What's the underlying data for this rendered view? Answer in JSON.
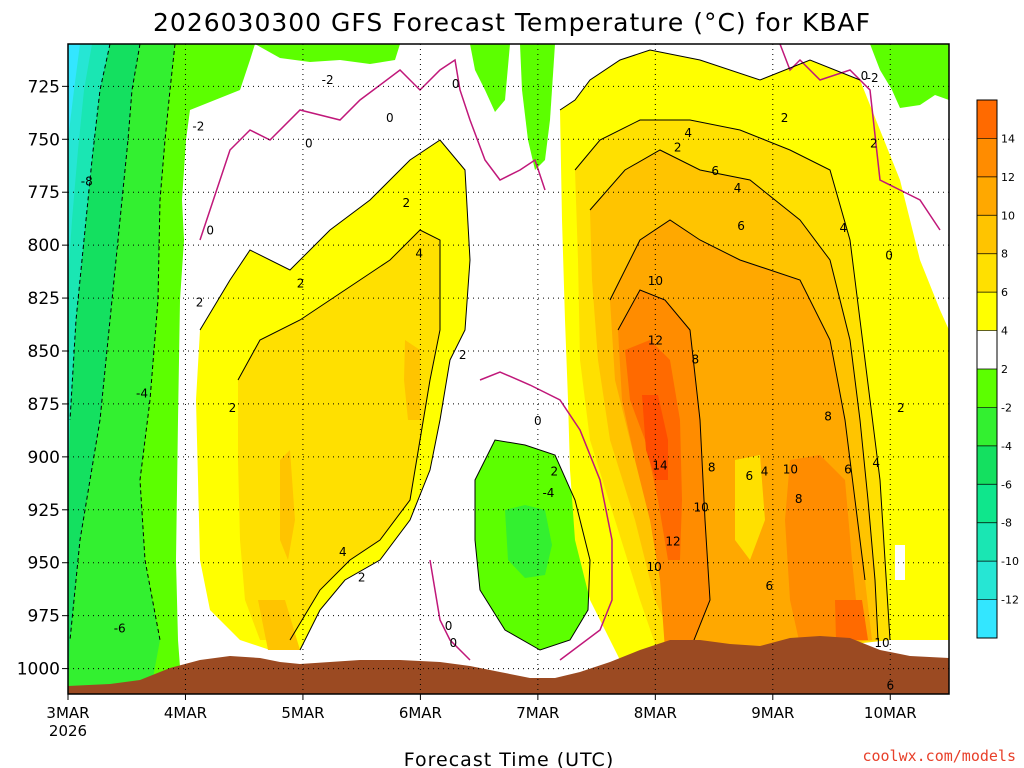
{
  "chart_data": {
    "type": "heatmap",
    "title": "2026030300  GFS Forecast Temperature (°C) for KBAF",
    "xlabel": "Forecast Time (UTC)",
    "ylabel": "",
    "x_ticks": [
      {
        "label": "3MAR",
        "sublabel": "2026",
        "day": 0
      },
      {
        "label": "4MAR",
        "day": 1
      },
      {
        "label": "5MAR",
        "day": 2
      },
      {
        "label": "6MAR",
        "day": 3
      },
      {
        "label": "7MAR",
        "day": 4
      },
      {
        "label": "8MAR",
        "day": 5
      },
      {
        "label": "9MAR",
        "day": 6
      },
      {
        "label": "10MAR",
        "day": 7
      }
    ],
    "xlim": [
      0,
      7.5
    ],
    "y_ticks": [
      725,
      750,
      775,
      800,
      825,
      850,
      875,
      900,
      925,
      950,
      975,
      1000
    ],
    "ylim": [
      1012,
      705
    ],
    "colorbar": {
      "levels": [
        -14,
        -12,
        -10,
        -8,
        -6,
        -4,
        -2,
        2,
        4,
        6,
        8,
        10,
        12,
        14,
        16
      ],
      "tick_labels": [
        "-12",
        "-10",
        "-8",
        "-6",
        "-4",
        "-2",
        "2",
        "4",
        "6",
        "8",
        "10",
        "12",
        "14"
      ],
      "colors": [
        "#33e6ff",
        "#26e6d4",
        "#1ae6b3",
        "#0fe68c",
        "#14e060",
        "#33f030",
        "#5cff00",
        "#ffffff",
        "#ffff00",
        "#ffe000",
        "#ffc400",
        "#ffa800",
        "#ff8c00",
        "#ff6a00",
        "#ff4e00"
      ]
    },
    "ground_color": "#9b4a22",
    "zero_contour_color": "#c0187a",
    "contour_labels": [
      {
        "text": "-2",
        "day": 2.21,
        "p": 722
      },
      {
        "text": "-2",
        "day": 1.11,
        "p": 744
      },
      {
        "text": "-2",
        "day": 6.85,
        "p": 721
      },
      {
        "text": "-8",
        "day": 0.16,
        "p": 770
      },
      {
        "text": "-4",
        "day": 0.63,
        "p": 870
      },
      {
        "text": "-6",
        "day": 0.44,
        "p": 981
      },
      {
        "text": "0",
        "day": 3.3,
        "p": 724
      },
      {
        "text": "0",
        "day": 2.74,
        "p": 740
      },
      {
        "text": "0",
        "day": 2.05,
        "p": 752
      },
      {
        "text": "0",
        "day": 1.21,
        "p": 793
      },
      {
        "text": "0",
        "day": 6.78,
        "p": 720
      },
      {
        "text": "0",
        "day": 6.99,
        "p": 805
      },
      {
        "text": "0",
        "day": 4.0,
        "p": 883
      },
      {
        "text": "0",
        "day": 3.24,
        "p": 980
      },
      {
        "text": "0",
        "day": 3.28,
        "p": 988
      },
      {
        "text": "2",
        "day": 5.19,
        "p": 754
      },
      {
        "text": "2",
        "day": 6.86,
        "p": 752
      },
      {
        "text": "2",
        "day": 6.1,
        "p": 740
      },
      {
        "text": "2",
        "day": 2.88,
        "p": 780
      },
      {
        "text": "2",
        "day": 1.98,
        "p": 818
      },
      {
        "text": "2",
        "day": 1.12,
        "p": 827
      },
      {
        "text": "2",
        "day": 1.4,
        "p": 877
      },
      {
        "text": "2",
        "day": 3.36,
        "p": 852
      },
      {
        "text": "2",
        "day": 4.14,
        "p": 907
      },
      {
        "text": "2",
        "day": 2.5,
        "p": 957
      },
      {
        "text": "2",
        "day": 7.09,
        "p": 877
      },
      {
        "text": "4",
        "day": 5.28,
        "p": 747
      },
      {
        "text": "4",
        "day": 5.7,
        "p": 773
      },
      {
        "text": "4",
        "day": 6.6,
        "p": 792
      },
      {
        "text": "4",
        "day": 2.99,
        "p": 804
      },
      {
        "text": "4",
        "day": 2.34,
        "p": 945
      },
      {
        "text": "4",
        "day": 5.93,
        "p": 907
      },
      {
        "text": "4",
        "day": 6.88,
        "p": 903
      },
      {
        "text": "-4",
        "day": 4.09,
        "p": 917
      },
      {
        "text": "6",
        "day": 5.51,
        "p": 765
      },
      {
        "text": "6",
        "day": 5.73,
        "p": 791
      },
      {
        "text": "6",
        "day": 5.8,
        "p": 909
      },
      {
        "text": "6",
        "day": 5.97,
        "p": 961
      },
      {
        "text": "6",
        "day": 6.64,
        "p": 906
      },
      {
        "text": "6",
        "day": 7.0,
        "p": 1008
      },
      {
        "text": "8",
        "day": 5.34,
        "p": 854
      },
      {
        "text": "8",
        "day": 6.47,
        "p": 881
      },
      {
        "text": "8",
        "day": 5.48,
        "p": 905
      },
      {
        "text": "8",
        "day": 6.22,
        "p": 920
      },
      {
        "text": "10",
        "day": 5.0,
        "p": 817
      },
      {
        "text": "10",
        "day": 5.39,
        "p": 924
      },
      {
        "text": "10",
        "day": 4.99,
        "p": 952
      },
      {
        "text": "10",
        "day": 6.15,
        "p": 906
      },
      {
        "text": "10",
        "day": 6.93,
        "p": 988
      },
      {
        "text": "12",
        "day": 5.0,
        "p": 845
      },
      {
        "text": "12",
        "day": 5.15,
        "p": 940
      },
      {
        "text": "14",
        "day": 5.04,
        "p": 904
      }
    ]
  },
  "credit": "coolwx.com/models"
}
